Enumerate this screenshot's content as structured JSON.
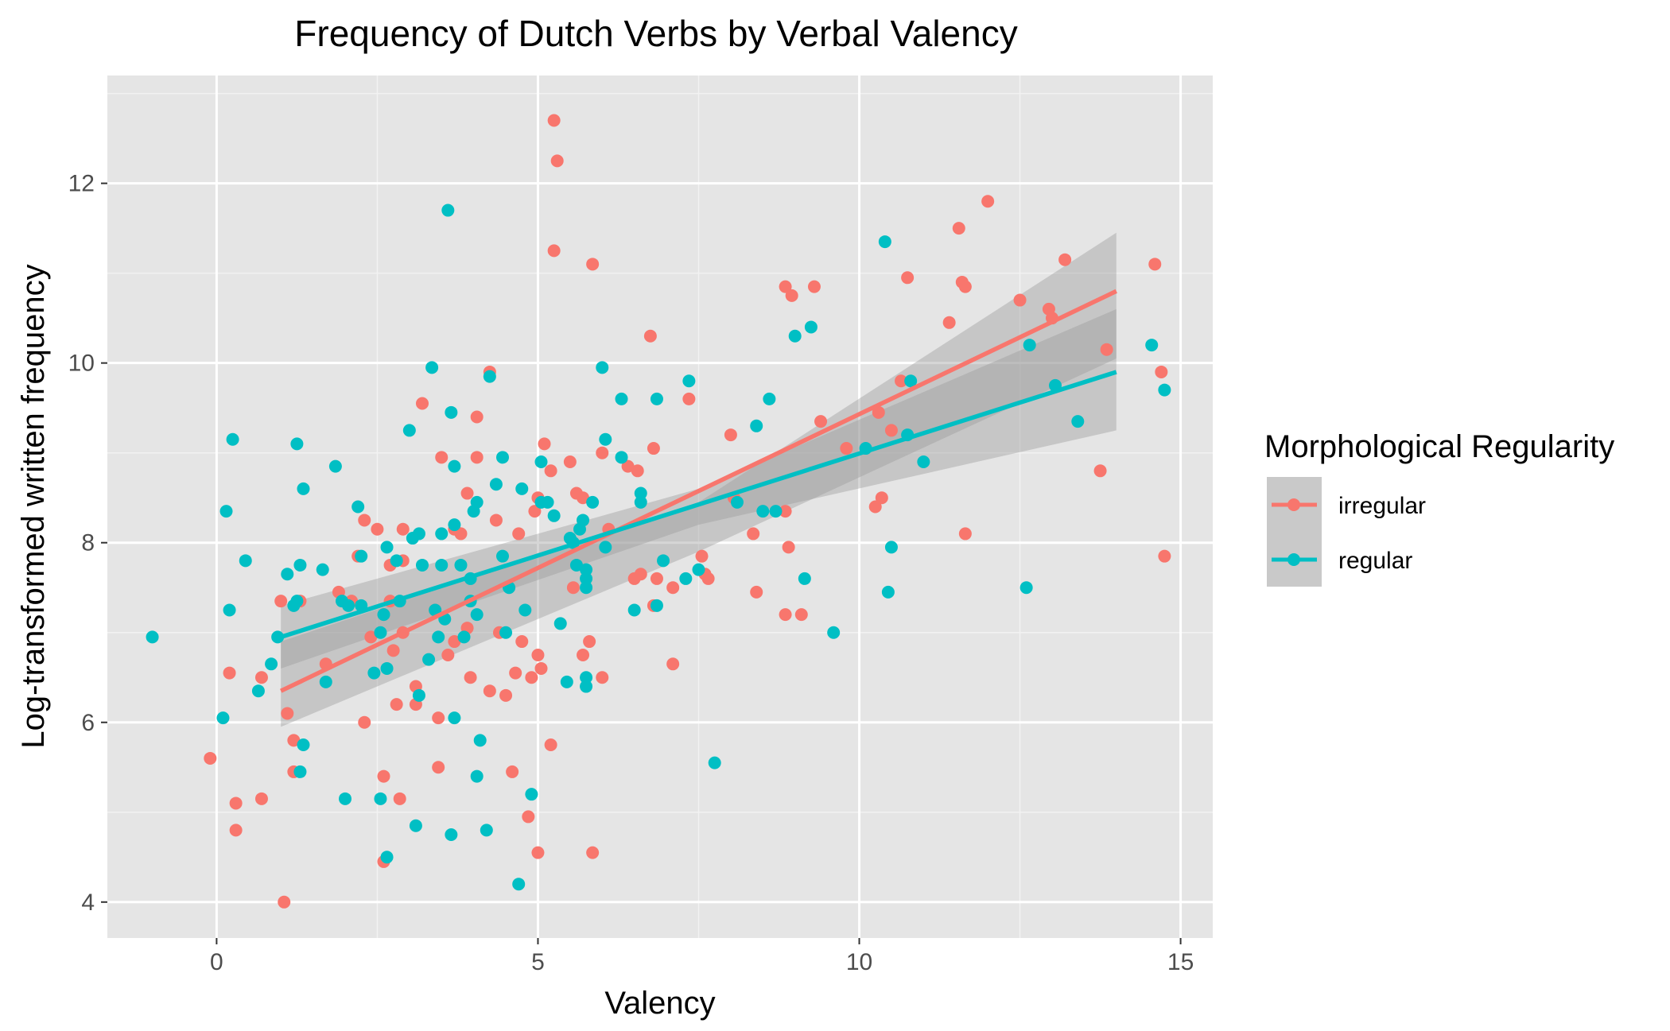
{
  "chart_data": {
    "type": "scatter",
    "title": "Frequency of Dutch Verbs by Verbal Valency",
    "xlabel": "Valency",
    "ylabel": "Log-transformed written frequency",
    "xlim": [
      -1.7,
      15.5
    ],
    "ylim": [
      3.6,
      13.2
    ],
    "xticks": [
      0,
      5,
      10,
      15
    ],
    "yticks": [
      4,
      6,
      8,
      10,
      12
    ],
    "grid": true,
    "background": "#e5e5e5",
    "legend": {
      "title": "Morphological Regularity",
      "position": "right"
    },
    "series": [
      {
        "name": "irregular",
        "color": "#f8766d",
        "fit": {
          "x": [
            1.0,
            14.0
          ],
          "y": [
            6.35,
            10.8
          ]
        },
        "band": {
          "x": [
            1.0,
            7.5,
            14.0
          ],
          "upper": [
            6.9,
            8.45,
            11.45
          ],
          "lower": [
            5.95,
            7.9,
            10.05
          ]
        },
        "points": [
          [
            -0.1,
            5.6
          ],
          [
            0.2,
            6.55
          ],
          [
            0.3,
            5.1
          ],
          [
            0.3,
            4.8
          ],
          [
            0.7,
            6.5
          ],
          [
            0.7,
            5.15
          ],
          [
            1.0,
            7.35
          ],
          [
            1.1,
            6.1
          ],
          [
            1.05,
            4.0
          ],
          [
            1.2,
            5.8
          ],
          [
            1.2,
            5.45
          ],
          [
            1.3,
            7.35
          ],
          [
            1.7,
            6.65
          ],
          [
            1.9,
            7.45
          ],
          [
            2.1,
            7.35
          ],
          [
            2.2,
            7.85
          ],
          [
            2.3,
            8.25
          ],
          [
            2.3,
            6.0
          ],
          [
            2.4,
            6.95
          ],
          [
            2.5,
            8.15
          ],
          [
            2.6,
            7.2
          ],
          [
            2.6,
            5.4
          ],
          [
            2.6,
            4.45
          ],
          [
            2.7,
            7.75
          ],
          [
            2.7,
            7.35
          ],
          [
            2.75,
            6.8
          ],
          [
            2.8,
            6.2
          ],
          [
            2.85,
            5.15
          ],
          [
            2.9,
            8.15
          ],
          [
            2.9,
            7.8
          ],
          [
            2.9,
            7.0
          ],
          [
            3.1,
            6.4
          ],
          [
            3.1,
            6.2
          ],
          [
            3.2,
            9.55
          ],
          [
            3.4,
            7.25
          ],
          [
            3.45,
            6.05
          ],
          [
            3.45,
            5.5
          ],
          [
            3.5,
            8.95
          ],
          [
            3.6,
            6.75
          ],
          [
            3.7,
            8.15
          ],
          [
            3.7,
            6.9
          ],
          [
            3.8,
            8.1
          ],
          [
            3.9,
            8.55
          ],
          [
            3.9,
            7.05
          ],
          [
            3.95,
            6.5
          ],
          [
            4.05,
            9.4
          ],
          [
            4.05,
            8.95
          ],
          [
            4.25,
            9.9
          ],
          [
            4.25,
            6.35
          ],
          [
            4.35,
            8.25
          ],
          [
            4.4,
            7.0
          ],
          [
            4.5,
            6.3
          ],
          [
            4.6,
            5.45
          ],
          [
            4.65,
            6.55
          ],
          [
            4.7,
            8.1
          ],
          [
            4.75,
            6.9
          ],
          [
            4.85,
            4.95
          ],
          [
            4.9,
            6.5
          ],
          [
            4.95,
            8.35
          ],
          [
            5.0,
            8.5
          ],
          [
            5.0,
            6.75
          ],
          [
            5.05,
            6.6
          ],
          [
            5.0,
            4.55
          ],
          [
            5.1,
            9.1
          ],
          [
            5.2,
            8.8
          ],
          [
            5.2,
            5.75
          ],
          [
            5.25,
            11.25
          ],
          [
            5.25,
            12.7
          ],
          [
            5.3,
            12.25
          ],
          [
            5.5,
            8.9
          ],
          [
            5.55,
            7.5
          ],
          [
            5.6,
            8.55
          ],
          [
            5.7,
            8.5
          ],
          [
            5.7,
            6.75
          ],
          [
            5.8,
            6.9
          ],
          [
            5.85,
            11.1
          ],
          [
            5.85,
            4.55
          ],
          [
            6.0,
            9.0
          ],
          [
            6.0,
            6.5
          ],
          [
            6.1,
            8.15
          ],
          [
            6.4,
            8.85
          ],
          [
            6.5,
            7.6
          ],
          [
            6.55,
            8.8
          ],
          [
            6.6,
            7.65
          ],
          [
            6.75,
            10.3
          ],
          [
            6.8,
            9.05
          ],
          [
            6.8,
            7.3
          ],
          [
            6.85,
            7.6
          ],
          [
            7.1,
            6.65
          ],
          [
            7.1,
            7.5
          ],
          [
            7.35,
            9.6
          ],
          [
            7.55,
            7.85
          ],
          [
            7.6,
            7.65
          ],
          [
            7.65,
            7.6
          ],
          [
            8.0,
            9.2
          ],
          [
            8.05,
            8.5
          ],
          [
            8.35,
            8.1
          ],
          [
            8.4,
            7.45
          ],
          [
            8.85,
            10.85
          ],
          [
            8.85,
            8.35
          ],
          [
            8.85,
            7.2
          ],
          [
            8.95,
            10.75
          ],
          [
            8.9,
            7.95
          ],
          [
            9.1,
            7.2
          ],
          [
            9.3,
            10.85
          ],
          [
            9.4,
            9.35
          ],
          [
            9.8,
            9.05
          ],
          [
            10.25,
            8.4
          ],
          [
            10.3,
            9.45
          ],
          [
            10.35,
            8.5
          ],
          [
            10.5,
            9.25
          ],
          [
            10.65,
            9.8
          ],
          [
            10.75,
            10.95
          ],
          [
            11.4,
            10.45
          ],
          [
            11.55,
            11.5
          ],
          [
            11.6,
            10.9
          ],
          [
            11.65,
            10.85
          ],
          [
            11.65,
            8.1
          ],
          [
            12.0,
            11.8
          ],
          [
            12.5,
            10.7
          ],
          [
            12.95,
            10.6
          ],
          [
            13.0,
            10.5
          ],
          [
            13.2,
            11.15
          ],
          [
            13.75,
            8.8
          ],
          [
            13.85,
            10.15
          ],
          [
            14.6,
            11.1
          ],
          [
            14.7,
            9.9
          ],
          [
            14.75,
            7.85
          ]
        ]
      },
      {
        "name": "regular",
        "color": "#00bfc4",
        "fit": {
          "x": [
            1.0,
            14.0
          ],
          "y": [
            6.95,
            9.9
          ]
        },
        "band": {
          "x": [
            1.0,
            7.5,
            14.0
          ],
          "upper": [
            7.3,
            8.6,
            10.6
          ],
          "lower": [
            6.6,
            8.2,
            9.25
          ]
        },
        "points": [
          [
            -1.0,
            6.95
          ],
          [
            0.1,
            6.05
          ],
          [
            0.15,
            8.35
          ],
          [
            0.2,
            7.25
          ],
          [
            0.25,
            9.15
          ],
          [
            0.45,
            7.8
          ],
          [
            0.65,
            6.35
          ],
          [
            0.85,
            6.65
          ],
          [
            0.95,
            6.95
          ],
          [
            1.1,
            7.65
          ],
          [
            1.2,
            7.3
          ],
          [
            1.25,
            7.35
          ],
          [
            1.25,
            9.1
          ],
          [
            1.3,
            7.75
          ],
          [
            1.3,
            5.45
          ],
          [
            1.35,
            8.6
          ],
          [
            1.35,
            5.75
          ],
          [
            1.7,
            6.45
          ],
          [
            1.65,
            7.7
          ],
          [
            1.85,
            8.85
          ],
          [
            1.95,
            7.35
          ],
          [
            2.0,
            5.15
          ],
          [
            2.05,
            7.3
          ],
          [
            2.2,
            8.4
          ],
          [
            2.25,
            7.85
          ],
          [
            2.25,
            7.3
          ],
          [
            2.45,
            6.55
          ],
          [
            2.55,
            7.0
          ],
          [
            2.6,
            7.2
          ],
          [
            2.55,
            5.15
          ],
          [
            2.65,
            7.95
          ],
          [
            2.65,
            6.6
          ],
          [
            2.65,
            4.5
          ],
          [
            2.8,
            7.8
          ],
          [
            2.85,
            7.35
          ],
          [
            3.0,
            9.25
          ],
          [
            3.05,
            8.05
          ],
          [
            3.15,
            8.1
          ],
          [
            3.15,
            6.3
          ],
          [
            3.1,
            4.85
          ],
          [
            3.2,
            7.75
          ],
          [
            3.3,
            6.7
          ],
          [
            3.35,
            9.95
          ],
          [
            3.4,
            7.25
          ],
          [
            3.45,
            6.95
          ],
          [
            3.5,
            8.1
          ],
          [
            3.5,
            7.75
          ],
          [
            3.55,
            7.15
          ],
          [
            3.6,
            11.7
          ],
          [
            3.65,
            9.45
          ],
          [
            3.65,
            4.75
          ],
          [
            3.7,
            8.2
          ],
          [
            3.7,
            8.85
          ],
          [
            3.7,
            6.05
          ],
          [
            3.8,
            7.75
          ],
          [
            3.85,
            6.95
          ],
          [
            3.95,
            7.6
          ],
          [
            3.95,
            7.35
          ],
          [
            4.0,
            8.35
          ],
          [
            4.05,
            8.45
          ],
          [
            4.05,
            7.2
          ],
          [
            4.05,
            5.4
          ],
          [
            4.1,
            5.8
          ],
          [
            4.2,
            4.8
          ],
          [
            4.25,
            9.85
          ],
          [
            4.35,
            8.65
          ],
          [
            4.45,
            8.95
          ],
          [
            4.45,
            7.85
          ],
          [
            4.5,
            7.0
          ],
          [
            4.55,
            7.5
          ],
          [
            4.7,
            4.2
          ],
          [
            4.75,
            8.6
          ],
          [
            4.8,
            7.25
          ],
          [
            4.9,
            5.2
          ],
          [
            5.05,
            8.9
          ],
          [
            5.05,
            8.45
          ],
          [
            5.15,
            8.45
          ],
          [
            5.25,
            8.3
          ],
          [
            5.35,
            7.1
          ],
          [
            5.45,
            6.45
          ],
          [
            5.5,
            8.05
          ],
          [
            5.55,
            8.0
          ],
          [
            5.6,
            7.75
          ],
          [
            5.65,
            8.15
          ],
          [
            5.7,
            8.25
          ],
          [
            5.75,
            7.6
          ],
          [
            5.75,
            7.5
          ],
          [
            5.75,
            7.7
          ],
          [
            5.75,
            6.4
          ],
          [
            5.75,
            6.5
          ],
          [
            5.85,
            8.45
          ],
          [
            6.0,
            9.95
          ],
          [
            6.05,
            9.15
          ],
          [
            6.05,
            7.95
          ],
          [
            6.3,
            8.95
          ],
          [
            6.3,
            9.6
          ],
          [
            6.5,
            7.25
          ],
          [
            6.6,
            8.55
          ],
          [
            6.6,
            8.45
          ],
          [
            6.85,
            9.6
          ],
          [
            6.85,
            7.3
          ],
          [
            6.95,
            7.8
          ],
          [
            7.3,
            7.6
          ],
          [
            7.35,
            9.8
          ],
          [
            7.5,
            7.7
          ],
          [
            7.75,
            5.55
          ],
          [
            8.1,
            8.45
          ],
          [
            8.4,
            9.3
          ],
          [
            8.5,
            8.35
          ],
          [
            8.6,
            9.6
          ],
          [
            8.7,
            8.35
          ],
          [
            9.0,
            10.3
          ],
          [
            9.15,
            7.6
          ],
          [
            9.25,
            10.4
          ],
          [
            9.6,
            7.0
          ],
          [
            10.1,
            9.05
          ],
          [
            10.4,
            11.35
          ],
          [
            10.45,
            7.45
          ],
          [
            10.5,
            7.95
          ],
          [
            10.75,
            9.2
          ],
          [
            10.8,
            9.8
          ],
          [
            11.0,
            8.9
          ],
          [
            12.6,
            7.5
          ],
          [
            12.65,
            10.2
          ],
          [
            13.05,
            9.75
          ],
          [
            13.4,
            9.35
          ],
          [
            14.55,
            10.2
          ],
          [
            14.75,
            9.7
          ]
        ]
      }
    ]
  }
}
